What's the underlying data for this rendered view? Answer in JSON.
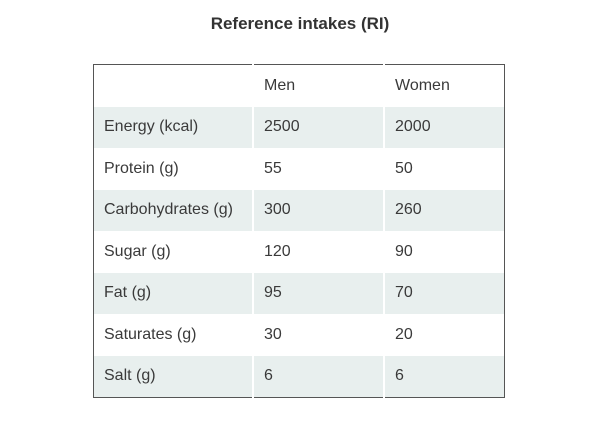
{
  "title": "Reference intakes (RI)",
  "table": {
    "headers": [
      "",
      "Men",
      "Women"
    ],
    "rows": [
      {
        "nutrient": "Energy (kcal)",
        "men": "2500",
        "women": "2000"
      },
      {
        "nutrient": "Protein (g)",
        "men": "55",
        "women": "50"
      },
      {
        "nutrient": "Carbohydrates (g)",
        "men": "300",
        "women": "260"
      },
      {
        "nutrient": "Sugar (g)",
        "men": "120",
        "women": "90"
      },
      {
        "nutrient": "Fat (g)",
        "men": "95",
        "women": "70"
      },
      {
        "nutrient": "Saturates (g)",
        "men": "30",
        "women": "20"
      },
      {
        "nutrient": "Salt (g)",
        "men": "6",
        "women": "6"
      }
    ]
  },
  "colors": {
    "stripe": "#e8efee",
    "border": "#555555",
    "text": "#3a3a3a"
  }
}
